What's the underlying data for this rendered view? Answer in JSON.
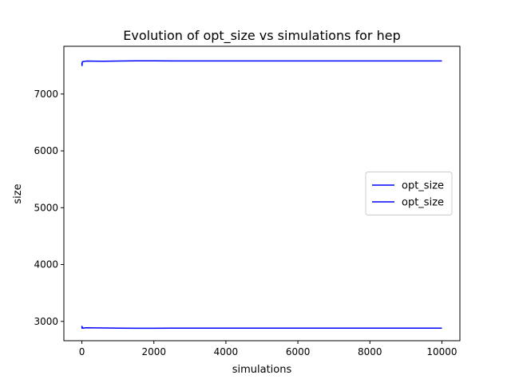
{
  "chart_data": {
    "type": "line",
    "title": "Evolution of opt_size vs simulations for hep",
    "xlabel": "simulations",
    "ylabel": "size",
    "xlim": [
      -500,
      10500
    ],
    "ylim": [
      2660,
      7840
    ],
    "xticks": [
      0,
      2000,
      4000,
      6000,
      8000,
      10000
    ],
    "yticks": [
      3000,
      4000,
      5000,
      6000,
      7000
    ],
    "grid": false,
    "legend": {
      "placement": "center-right"
    },
    "colors": {
      "series": "#0000ff"
    },
    "series": [
      {
        "name": "opt_size",
        "x": [
          0,
          5,
          10,
          20,
          40,
          80,
          150,
          300,
          600,
          1000,
          1500,
          2000,
          2500,
          4000,
          6000,
          8000,
          10000
        ],
        "y": [
          7550,
          7500,
          7560,
          7570,
          7572,
          7576,
          7580,
          7578,
          7576,
          7580,
          7583,
          7584,
          7582,
          7582,
          7582,
          7582,
          7582
        ]
      },
      {
        "name": "opt_size",
        "x": [
          0,
          5,
          10,
          20,
          40,
          80,
          150,
          300,
          600,
          1000,
          1500,
          2000,
          2500,
          4000,
          6000,
          8000,
          10000
        ],
        "y": [
          2920,
          2880,
          2900,
          2885,
          2880,
          2886,
          2888,
          2886,
          2884,
          2882,
          2880,
          2880,
          2882,
          2882,
          2882,
          2882,
          2882
        ]
      }
    ]
  }
}
